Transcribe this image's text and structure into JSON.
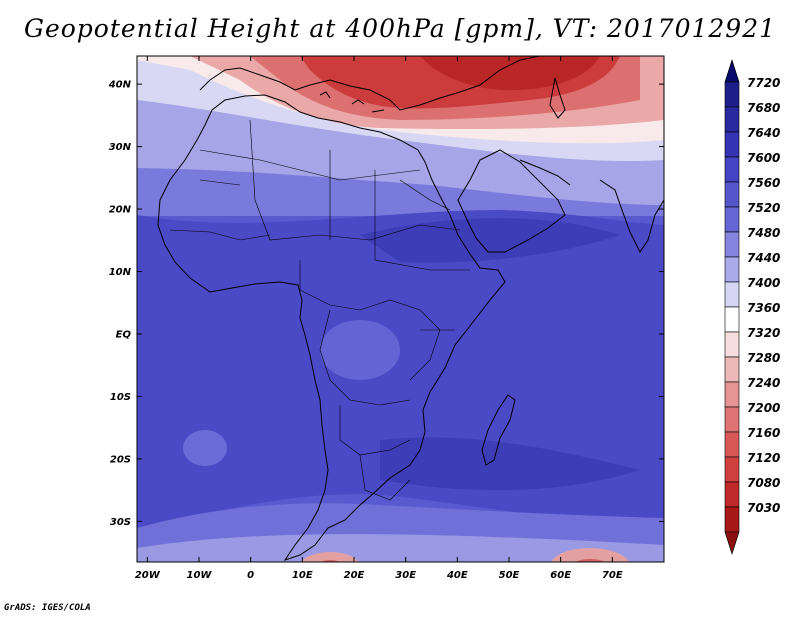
{
  "title": "Geopotential Height at 400hPa [gpm], VT: 2017012921",
  "credit": "GrADS: IGES/COLA",
  "map": {
    "lat_range": [
      -36.5,
      44.5
    ],
    "lon_range": [
      -22,
      80
    ],
    "lat_ticks": [
      {
        "value": 40,
        "label": "40N"
      },
      {
        "value": 30,
        "label": "30N"
      },
      {
        "value": 20,
        "label": "20N"
      },
      {
        "value": 10,
        "label": "10N"
      },
      {
        "value": 0,
        "label": "EQ"
      },
      {
        "value": -10,
        "label": "10S"
      },
      {
        "value": -20,
        "label": "20S"
      },
      {
        "value": -30,
        "label": "30S"
      }
    ],
    "lon_ticks": [
      {
        "value": -20,
        "label": "20W"
      },
      {
        "value": -10,
        "label": "10W"
      },
      {
        "value": 0,
        "label": "0"
      },
      {
        "value": 10,
        "label": "10E"
      },
      {
        "value": 20,
        "label": "20E"
      },
      {
        "value": 30,
        "label": "30E"
      },
      {
        "value": 40,
        "label": "40E"
      },
      {
        "value": 50,
        "label": "50E"
      },
      {
        "value": 60,
        "label": "60E"
      },
      {
        "value": 70,
        "label": "70E"
      }
    ]
  },
  "legend": {
    "levels": [
      {
        "label": "7720",
        "color": "#1e1e8a"
      },
      {
        "label": "7680",
        "color": "#2a2aa0"
      },
      {
        "label": "7640",
        "color": "#3434b4"
      },
      {
        "label": "7600",
        "color": "#4343c4"
      },
      {
        "label": "7560",
        "color": "#5555cc"
      },
      {
        "label": "7520",
        "color": "#6666d6"
      },
      {
        "label": "7480",
        "color": "#8585e0"
      },
      {
        "label": "7440",
        "color": "#aaaaea"
      },
      {
        "label": "7400",
        "color": "#d6d6f4"
      },
      {
        "label": "7360",
        "color": "#ffffff"
      },
      {
        "label": "7320",
        "color": "#f6dcdc"
      },
      {
        "label": "7280",
        "color": "#eeb8b8"
      },
      {
        "label": "7240",
        "color": "#e69494"
      },
      {
        "label": "7200",
        "color": "#e07474"
      },
      {
        "label": "7160",
        "color": "#d95858"
      },
      {
        "label": "7120",
        "color": "#d04040"
      },
      {
        "label": "7080",
        "color": "#c02a2a"
      },
      {
        "label": "7030",
        "color": "#a81818"
      }
    ],
    "top_arrow_color": "#0a0a6a",
    "bottom_arrow_color": "#8a1010"
  }
}
